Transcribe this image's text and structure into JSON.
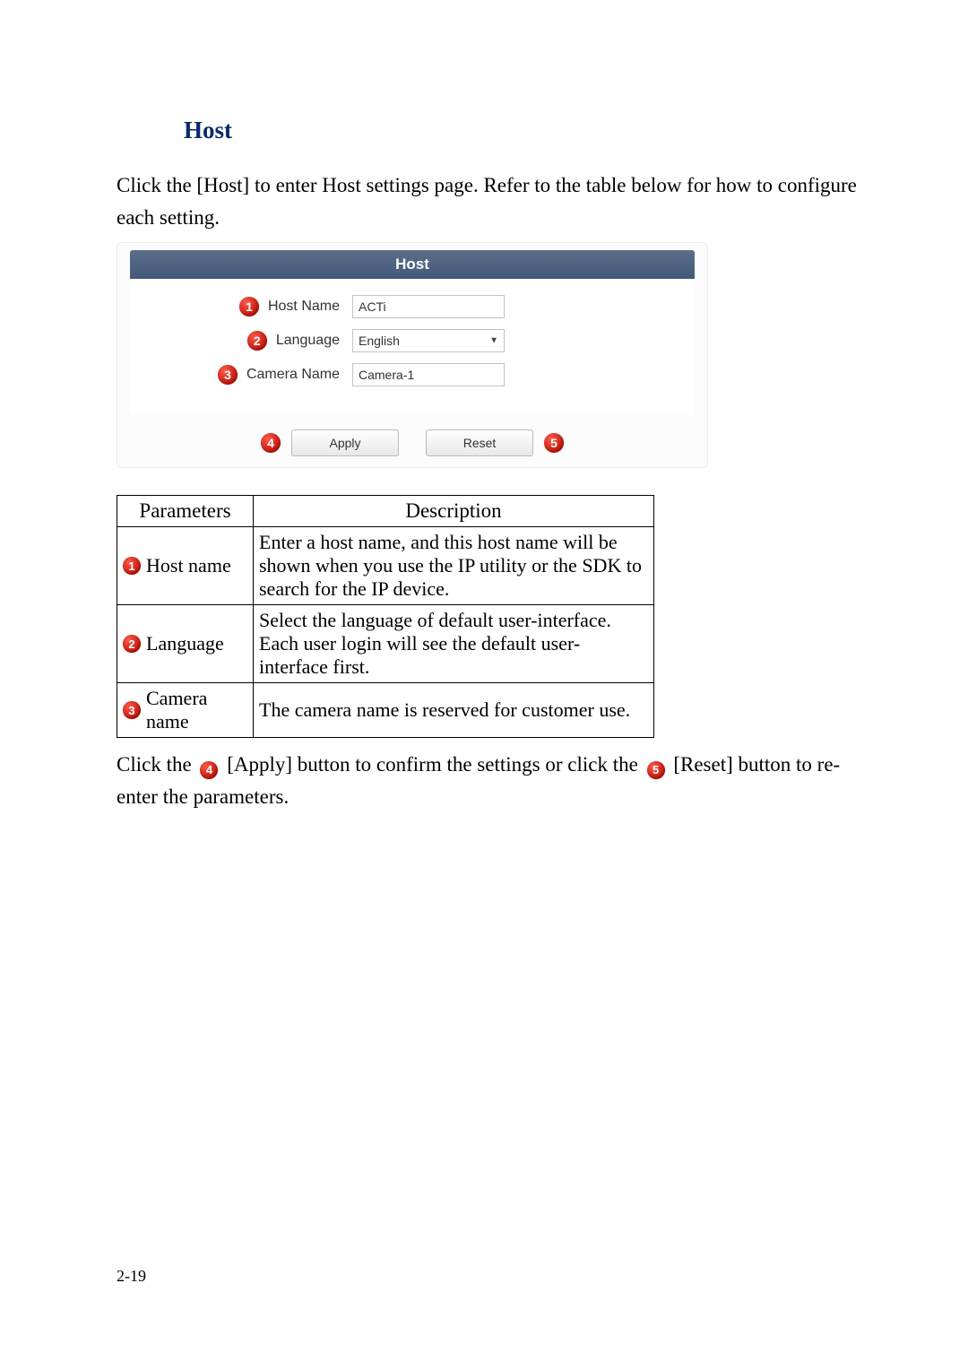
{
  "page": {
    "section_title": "Host",
    "intro": "Click the [Host] to enter Host settings page. Refer to the table below for how to configure each setting.",
    "page_number": "2-19"
  },
  "panel": {
    "header": "Host",
    "rows": [
      {
        "badge": "1",
        "label": "Host Name",
        "value": "ACTi",
        "type": "text"
      },
      {
        "badge": "2",
        "label": "Language",
        "value": "English",
        "type": "select"
      },
      {
        "badge": "3",
        "label": "Camera Name",
        "value": "Camera-1",
        "type": "text"
      }
    ],
    "buttons": {
      "apply_badge": "4",
      "apply_label": "Apply",
      "reset_label": "Reset",
      "reset_badge": "5"
    },
    "colors": {
      "header_bg_top": "#5b6e88",
      "header_bg_bottom": "#44587a",
      "badge_red_light": "#ff5a4a",
      "badge_red_dark": "#c0140a",
      "border_gray": "#c3c3c3"
    }
  },
  "table": {
    "headers": [
      "Parameters",
      "Description"
    ],
    "rows": [
      {
        "badge": "1",
        "param": "Host name",
        "desc": "Enter a host name, and this host name will be shown when you use the IP utility or the SDK to search for the IP device."
      },
      {
        "badge": "2",
        "param": "Language",
        "desc": "Select the language of default user-interface. Each user login will see the default user-interface first."
      },
      {
        "badge": "3",
        "param": "Camera name",
        "desc": "The camera name is reserved for customer use."
      }
    ]
  },
  "after": {
    "pre4": "Click the ",
    "badge4": "4",
    "mid": " [Apply] button to confirm the settings or click the ",
    "badge5": "5",
    "post5": " [Reset] button to re-enter the parameters."
  }
}
